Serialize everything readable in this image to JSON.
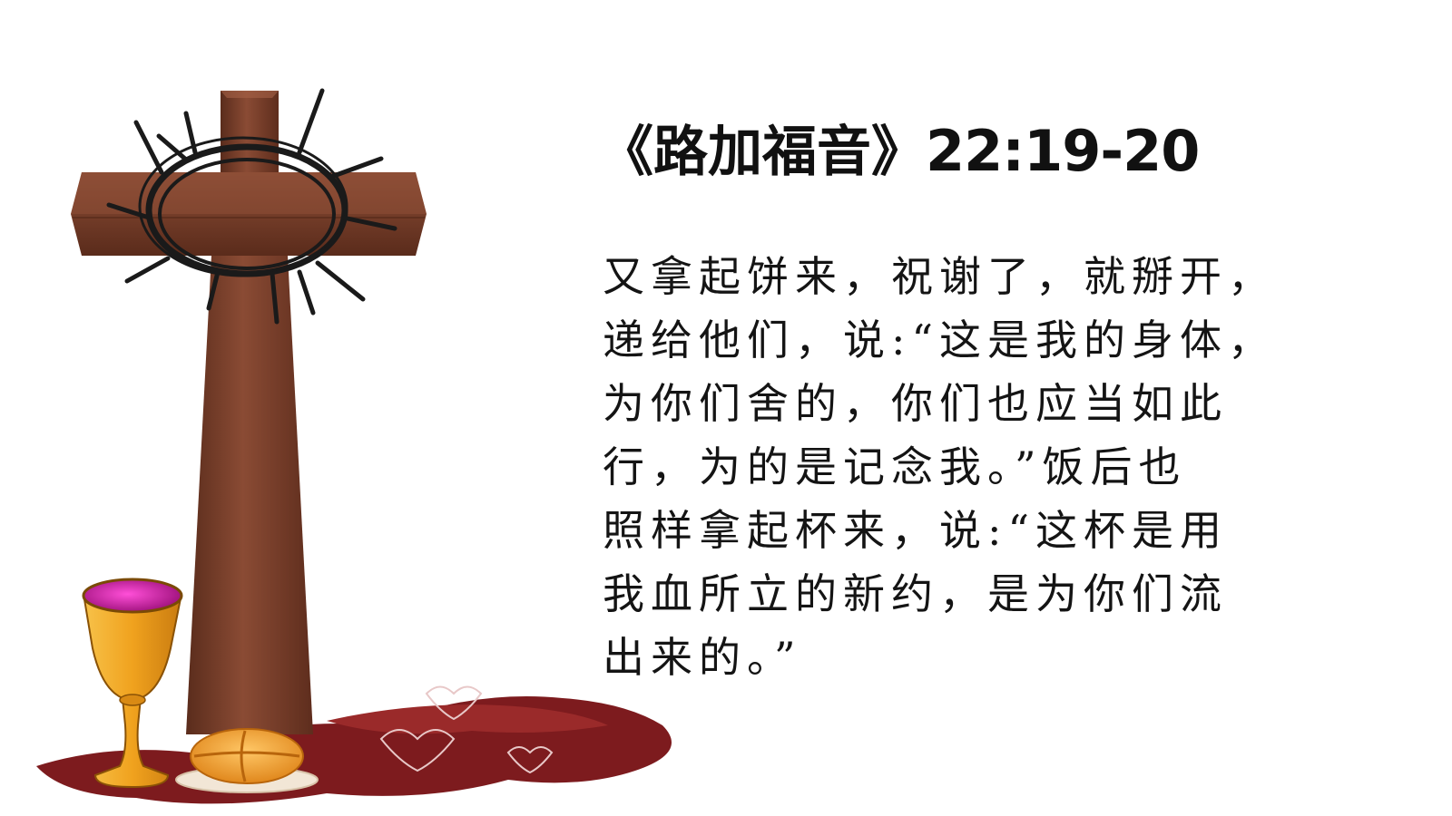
{
  "slide": {
    "title": {
      "book": "《路加福音》",
      "reference": "22:19-20"
    },
    "verse_lines": [
      "又拿起饼来，祝谢了，就掰开，",
      "递给他们，说:“这是我的身体，",
      "为你们舍的，你们也应当如此",
      "行，为的是记念我。”饭后也",
      "照样拿起杯来，说:“这杯是用",
      "我血所立的新约，是为你们流",
      "出来的。”"
    ]
  },
  "illustration": {
    "elements": [
      "cross-icon",
      "crown-of-thorns-icon",
      "chalice-icon",
      "bread-icon",
      "wine-stain-icon"
    ],
    "colors": {
      "cross": "#7a3e2a",
      "cross_shadow": "#4e2517",
      "thorns": "#1a1a1a",
      "chalice": "#f0a21e",
      "wine": "#c01890",
      "bread": "#f3a53a",
      "stain": "#7d1b1e"
    }
  }
}
